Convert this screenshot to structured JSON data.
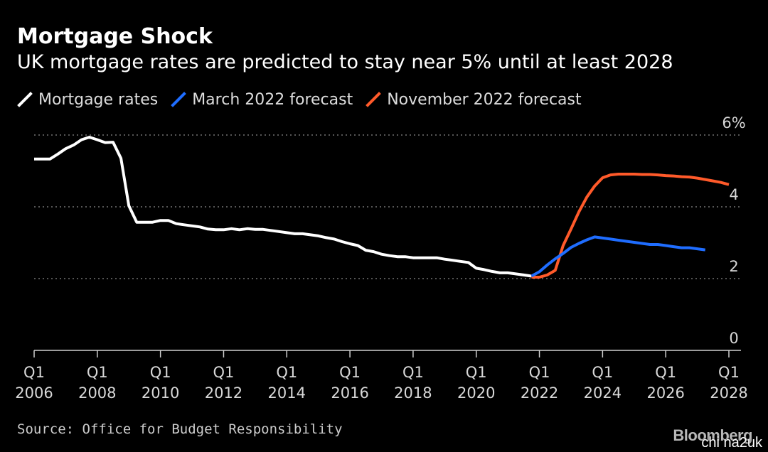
{
  "title": "Mortgage Shock",
  "subtitle": "UK mortgage rates are predicted to stay near 5% until at least 2028",
  "source": "Source: Office for Budget Responsibility",
  "brand": "Bloomberg",
  "watermark": "chi na2uk",
  "chart_data": {
    "type": "line",
    "title": "Mortgage Shock",
    "subtitle": "UK mortgage rates are predicted to stay near 5% until at least 2028",
    "xlabel": "",
    "ylabel": "",
    "xlim": [
      2006.0,
      2028.0
    ],
    "ylim": [
      0,
      6
    ],
    "y_ticks": [
      {
        "value": 0,
        "label": "0"
      },
      {
        "value": 2,
        "label": "2"
      },
      {
        "value": 4,
        "label": "4"
      },
      {
        "value": 6,
        "label": "6%"
      }
    ],
    "x_ticks": [
      {
        "value": 2006,
        "label1": "Q1",
        "label2": "2006"
      },
      {
        "value": 2008,
        "label1": "Q1",
        "label2": "2008"
      },
      {
        "value": 2010,
        "label1": "Q1",
        "label2": "2010"
      },
      {
        "value": 2012,
        "label1": "Q1",
        "label2": "2012"
      },
      {
        "value": 2014,
        "label1": "Q1",
        "label2": "2014"
      },
      {
        "value": 2016,
        "label1": "Q1",
        "label2": "2016"
      },
      {
        "value": 2018,
        "label1": "Q1",
        "label2": "2018"
      },
      {
        "value": 2020,
        "label1": "Q1",
        "label2": "2020"
      },
      {
        "value": 2022,
        "label1": "Q1",
        "label2": "2022"
      },
      {
        "value": 2024,
        "label1": "Q1",
        "label2": "2024"
      },
      {
        "value": 2026,
        "label1": "Q1",
        "label2": "2026"
      },
      {
        "value": 2028,
        "label1": "Q1",
        "label2": "2028"
      }
    ],
    "grid": "horizontal-dotted",
    "legend_position": "top-left",
    "series": [
      {
        "name": "Mortgage rates",
        "color": "#ffffff",
        "x": [
          2006.0,
          2006.25,
          2006.5,
          2006.75,
          2007.0,
          2007.25,
          2007.5,
          2007.75,
          2008.0,
          2008.25,
          2008.5,
          2008.75,
          2009.0,
          2009.25,
          2009.5,
          2009.75,
          2010.0,
          2010.25,
          2010.5,
          2010.75,
          2011.0,
          2011.25,
          2011.5,
          2011.75,
          2012.0,
          2012.25,
          2012.5,
          2012.75,
          2013.0,
          2013.25,
          2013.5,
          2013.75,
          2014.0,
          2014.25,
          2014.5,
          2014.75,
          2015.0,
          2015.25,
          2015.5,
          2015.75,
          2016.0,
          2016.25,
          2016.5,
          2016.75,
          2017.0,
          2017.25,
          2017.5,
          2017.75,
          2018.0,
          2018.25,
          2018.5,
          2018.75,
          2019.0,
          2019.25,
          2019.5,
          2019.75,
          2020.0,
          2020.25,
          2020.5,
          2020.75,
          2021.0,
          2021.25,
          2021.5,
          2021.75
        ],
        "values": [
          5.33,
          5.33,
          5.33,
          5.47,
          5.62,
          5.72,
          5.87,
          5.94,
          5.87,
          5.79,
          5.8,
          5.35,
          4.03,
          3.57,
          3.57,
          3.57,
          3.62,
          3.62,
          3.53,
          3.5,
          3.47,
          3.44,
          3.38,
          3.36,
          3.36,
          3.39,
          3.36,
          3.39,
          3.37,
          3.37,
          3.34,
          3.31,
          3.28,
          3.25,
          3.25,
          3.22,
          3.19,
          3.14,
          3.1,
          3.03,
          2.97,
          2.92,
          2.79,
          2.75,
          2.68,
          2.64,
          2.61,
          2.61,
          2.58,
          2.58,
          2.58,
          2.58,
          2.54,
          2.51,
          2.48,
          2.45,
          2.29,
          2.25,
          2.2,
          2.16,
          2.16,
          2.13,
          2.1,
          2.07
        ]
      },
      {
        "name": "March 2022 forecast",
        "color": "#1f6dff",
        "x": [
          2021.75,
          2022.0,
          2022.25,
          2022.5,
          2022.75,
          2023.0,
          2023.25,
          2023.5,
          2023.75,
          2024.0,
          2024.25,
          2024.5,
          2024.75,
          2025.0,
          2025.25,
          2025.5,
          2025.75,
          2026.0,
          2026.25,
          2026.5,
          2026.75,
          2027.0,
          2027.25
        ],
        "values": [
          2.07,
          2.19,
          2.38,
          2.55,
          2.7,
          2.87,
          2.98,
          3.08,
          3.16,
          3.13,
          3.1,
          3.07,
          3.04,
          3.01,
          2.98,
          2.95,
          2.95,
          2.92,
          2.89,
          2.86,
          2.86,
          2.83,
          2.8
        ]
      },
      {
        "name": "November 2022 forecast",
        "color": "#ff5a2a",
        "x": [
          2021.75,
          2022.0,
          2022.25,
          2022.5,
          2022.75,
          2023.0,
          2023.25,
          2023.5,
          2023.75,
          2024.0,
          2024.25,
          2024.5,
          2024.75,
          2025.0,
          2025.25,
          2025.5,
          2025.75,
          2026.0,
          2026.25,
          2026.5,
          2026.75,
          2027.0,
          2027.25,
          2027.5,
          2027.75,
          2028.0
        ],
        "values": [
          2.04,
          2.04,
          2.1,
          2.23,
          2.92,
          3.38,
          3.86,
          4.27,
          4.58,
          4.81,
          4.89,
          4.91,
          4.91,
          4.91,
          4.9,
          4.9,
          4.89,
          4.87,
          4.86,
          4.84,
          4.83,
          4.8,
          4.76,
          4.72,
          4.68,
          4.62
        ]
      }
    ]
  }
}
